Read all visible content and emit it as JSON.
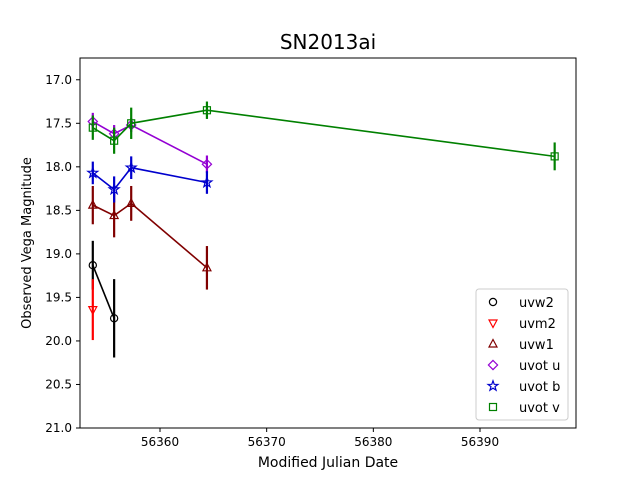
{
  "chart_data": {
    "type": "scatter",
    "title": "SN2013ai",
    "xlabel": "Modified Julian Date",
    "ylabel": "Observed Vega Magnitude",
    "xlim": [
      56352.5,
      56399.0
    ],
    "ylim": [
      21.0,
      16.75
    ],
    "y_inverted": true,
    "xticks": [
      56360,
      56370,
      56380,
      56390
    ],
    "xtick_labels": [
      "56360",
      "56370",
      "56380",
      "56390"
    ],
    "yticks": [
      17.0,
      17.5,
      18.0,
      18.5,
      19.0,
      19.5,
      20.0,
      20.5,
      21.0
    ],
    "ytick_labels": [
      "17.0",
      "17.5",
      "18.0",
      "18.5",
      "19.0",
      "19.5",
      "20.0",
      "20.5",
      "21.0"
    ],
    "grid": false,
    "legend_position": "lower-right",
    "series": [
      {
        "name": "uvw2",
        "marker": "circle",
        "color": "#000000",
        "connected": true,
        "points": [
          {
            "x": 56353.7,
            "y": 19.13,
            "err": 0.28
          },
          {
            "x": 56355.7,
            "y": 19.74,
            "err": 0.45
          }
        ]
      },
      {
        "name": "uvm2",
        "marker": "triangle-down",
        "color": "#ff0000",
        "connected": false,
        "points": [
          {
            "x": 56353.7,
            "y": 19.64,
            "err": 0.35
          }
        ]
      },
      {
        "name": "uvw1",
        "marker": "triangle-up",
        "color": "#800000",
        "connected": true,
        "points": [
          {
            "x": 56353.7,
            "y": 18.44,
            "err": 0.22
          },
          {
            "x": 56355.7,
            "y": 18.56,
            "err": 0.25
          },
          {
            "x": 56357.3,
            "y": 18.42,
            "err": 0.2
          },
          {
            "x": 56364.4,
            "y": 19.16,
            "err": 0.25
          }
        ]
      },
      {
        "name": "uvot u",
        "marker": "diamond",
        "color": "#9400d3",
        "connected": true,
        "points": [
          {
            "x": 56353.7,
            "y": 17.48,
            "err": 0.1
          },
          {
            "x": 56355.7,
            "y": 17.62,
            "err": 0.1
          },
          {
            "x": 56357.3,
            "y": 17.52,
            "err": 0.08
          },
          {
            "x": 56364.4,
            "y": 17.97,
            "err": 0.1
          }
        ]
      },
      {
        "name": "uvot b",
        "marker": "star",
        "color": "#0000cd",
        "connected": true,
        "points": [
          {
            "x": 56353.7,
            "y": 18.07,
            "err": 0.13
          },
          {
            "x": 56355.7,
            "y": 18.26,
            "err": 0.15
          },
          {
            "x": 56357.3,
            "y": 18.01,
            "err": 0.13
          },
          {
            "x": 56364.4,
            "y": 18.18,
            "err": 0.13
          }
        ]
      },
      {
        "name": "uvot v",
        "marker": "square",
        "color": "#008000",
        "connected": true,
        "points": [
          {
            "x": 56353.7,
            "y": 17.55,
            "err": 0.14
          },
          {
            "x": 56355.7,
            "y": 17.7,
            "err": 0.15
          },
          {
            "x": 56357.3,
            "y": 17.5,
            "err": 0.18
          },
          {
            "x": 56364.4,
            "y": 17.35,
            "err": 0.1
          },
          {
            "x": 56397.0,
            "y": 17.88,
            "err": 0.16
          }
        ]
      }
    ]
  }
}
